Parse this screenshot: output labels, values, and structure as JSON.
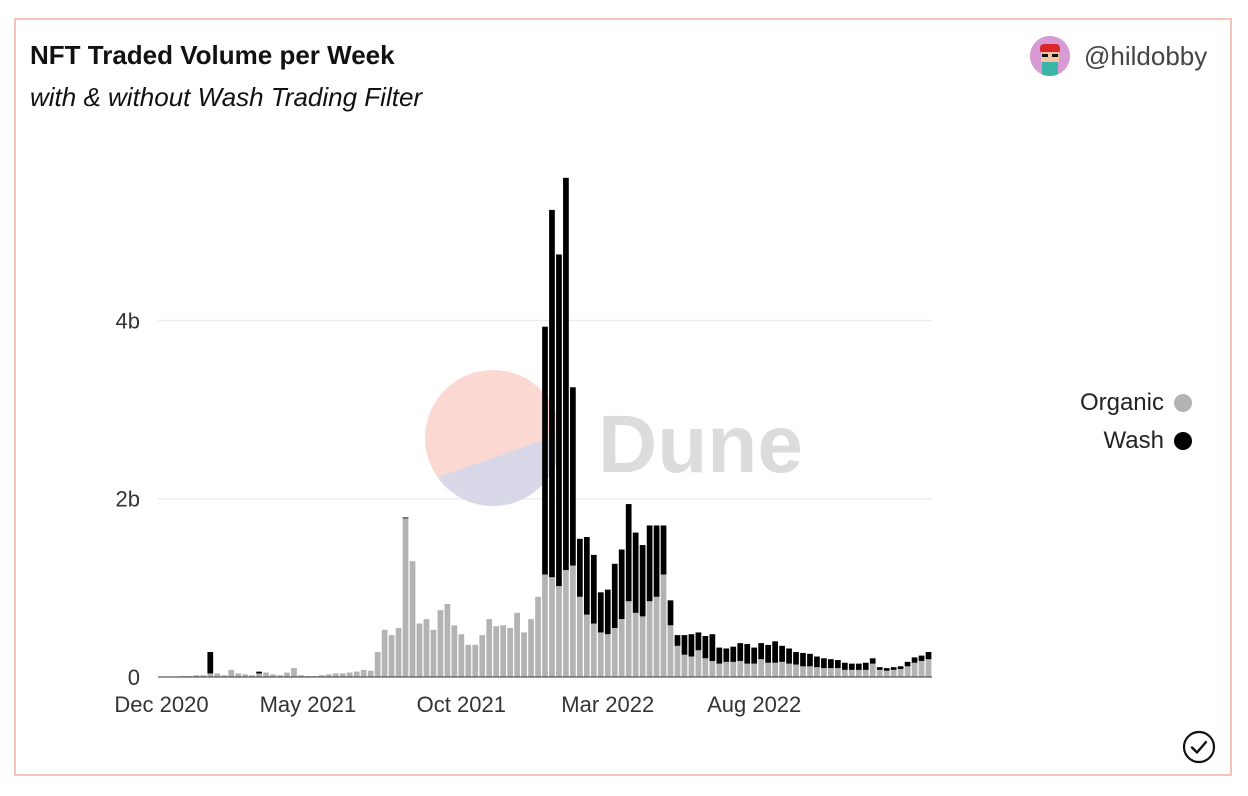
{
  "header": {
    "title": "NFT Traded Volume per Week",
    "subtitle": "with & without Wash Trading Filter",
    "author": "@hildobby"
  },
  "watermark": {
    "text": "Dune"
  },
  "legend": {
    "items": [
      {
        "label": "Organic",
        "color": "#b3b3b3"
      },
      {
        "label": "Wash",
        "color": "#000000"
      }
    ]
  },
  "chart_data": {
    "type": "bar",
    "stacked": true,
    "title": "NFT Traded Volume per Week",
    "subtitle": "with & without Wash Trading Filter",
    "xlabel": "",
    "ylabel": "",
    "ylim": [
      0,
      5800000000
    ],
    "grid": true,
    "legend_position": "right",
    "x_ticks": [
      {
        "label": "Dec 2020",
        "index": 0
      },
      {
        "label": "May 2021",
        "index": 21
      },
      {
        "label": "Oct 2021",
        "index": 43
      },
      {
        "label": "Mar 2022",
        "index": 64
      },
      {
        "label": "Aug 2022",
        "index": 85
      }
    ],
    "y_ticks": [
      {
        "label": "0",
        "value": 0
      },
      {
        "label": "2b",
        "value": 2000000000
      },
      {
        "label": "4b",
        "value": 4000000000
      }
    ],
    "series": [
      {
        "name": "Organic",
        "color": "#b3b3b3",
        "values": [
          0.005,
          0.005,
          0.005,
          0.01,
          0.01,
          0.02,
          0.02,
          0.04,
          0.04,
          0.02,
          0.08,
          0.04,
          0.03,
          0.02,
          0.04,
          0.05,
          0.03,
          0.02,
          0.05,
          0.1,
          0.02,
          0.01,
          0.01,
          0.02,
          0.03,
          0.04,
          0.04,
          0.05,
          0.06,
          0.08,
          0.07,
          0.28,
          0.53,
          0.47,
          0.55,
          1.78,
          1.3,
          0.6,
          0.65,
          0.53,
          0.75,
          0.82,
          0.58,
          0.48,
          0.36,
          0.36,
          0.47,
          0.65,
          0.57,
          0.58,
          0.55,
          0.72,
          0.5,
          0.65,
          0.9,
          1.15,
          1.12,
          1.02,
          1.2,
          1.25,
          0.9,
          0.7,
          0.6,
          0.5,
          0.48,
          0.55,
          0.65,
          0.85,
          0.72,
          0.68,
          0.85,
          0.9,
          1.15,
          0.58,
          0.35,
          0.25,
          0.23,
          0.3,
          0.21,
          0.18,
          0.15,
          0.17,
          0.17,
          0.18,
          0.15,
          0.15,
          0.2,
          0.16,
          0.16,
          0.17,
          0.15,
          0.14,
          0.12,
          0.12,
          0.11,
          0.1,
          0.1,
          0.1,
          0.08,
          0.08,
          0.08,
          0.08,
          0.15,
          0.08,
          0.07,
          0.08,
          0.09,
          0.12,
          0.16,
          0.18,
          0.2
        ],
        "note_unit": "billions"
      },
      {
        "name": "Wash",
        "color": "#000000",
        "values": [
          0,
          0,
          0,
          0,
          0,
          0,
          0,
          0.24,
          0,
          0,
          0,
          0,
          0,
          0,
          0.02,
          0,
          0,
          0,
          0,
          0,
          0,
          0,
          0,
          0,
          0,
          0,
          0,
          0,
          0,
          0,
          0,
          0,
          0,
          0,
          0,
          0.01,
          0,
          0,
          0,
          0,
          0,
          0,
          0,
          0,
          0,
          0,
          0,
          0,
          0,
          0,
          0,
          0,
          0,
          0,
          0,
          2.78,
          4.12,
          3.72,
          4.4,
          2.0,
          0.65,
          0.87,
          0.77,
          0.45,
          0.5,
          0.72,
          0.78,
          1.09,
          0.9,
          0.8,
          0.85,
          0.8,
          0.55,
          0.28,
          0.12,
          0.22,
          0.25,
          0.2,
          0.25,
          0.3,
          0.18,
          0.15,
          0.17,
          0.2,
          0.22,
          0.18,
          0.18,
          0.2,
          0.24,
          0.18,
          0.17,
          0.14,
          0.15,
          0.14,
          0.12,
          0.11,
          0.1,
          0.09,
          0.08,
          0.07,
          0.07,
          0.08,
          0.06,
          0.03,
          0.03,
          0.03,
          0.03,
          0.05,
          0.06,
          0.06,
          0.08
        ],
        "note_unit": "billions"
      }
    ]
  }
}
